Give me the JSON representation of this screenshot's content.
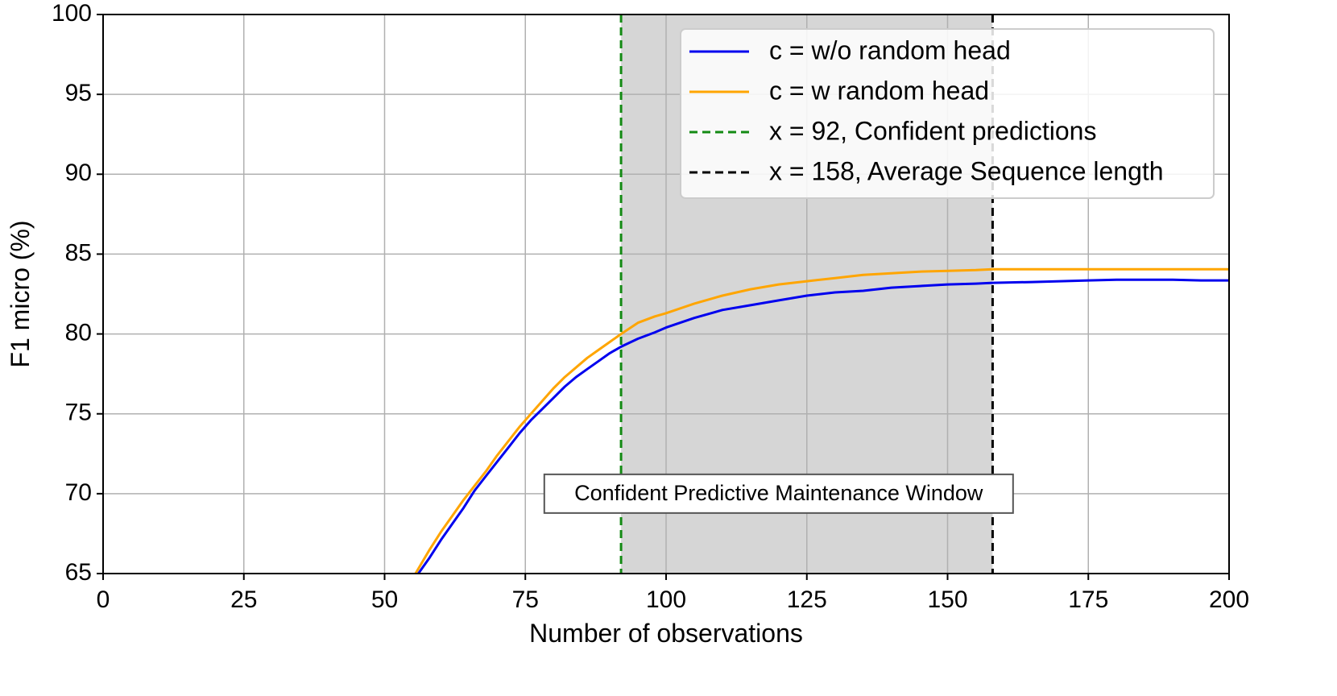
{
  "chart_data": {
    "type": "line",
    "title": "",
    "xlabel": "Number of observations",
    "ylabel": "F1 micro (%)",
    "xlim": [
      0,
      200
    ],
    "ylim": [
      65,
      100
    ],
    "xticks": [
      0,
      25,
      50,
      75,
      100,
      125,
      150,
      175,
      200
    ],
    "yticks": [
      65,
      70,
      75,
      80,
      85,
      90,
      95,
      100
    ],
    "grid": true,
    "legend_position": "top-right",
    "shaded_region": {
      "x_start": 92,
      "x_end": 158,
      "color": "#d6d6d6"
    },
    "vlines": [
      {
        "x": 92,
        "label": "x = 92, Confident predictions",
        "color": "#138a13",
        "style": "dashed"
      },
      {
        "x": 158,
        "label": "x = 158, Average Sequence length",
        "color": "#000000",
        "style": "dashed"
      }
    ],
    "annotation": {
      "text": "Confident Predictive Maintenance Window",
      "x": 120,
      "y": 70
    },
    "series": [
      {
        "name": "c = w/o random head",
        "color": "#0000ee",
        "x": [
          56,
          58,
          60,
          62,
          64,
          66,
          68,
          70,
          72,
          74,
          76,
          78,
          80,
          82,
          84,
          86,
          88,
          90,
          92,
          95,
          98,
          100,
          105,
          110,
          115,
          120,
          125,
          130,
          135,
          140,
          145,
          150,
          155,
          158,
          165,
          170,
          175,
          180,
          185,
          190,
          195,
          200
        ],
        "y": [
          65.0,
          66.0,
          67.1,
          68.1,
          69.1,
          70.2,
          71.1,
          72.0,
          72.9,
          73.8,
          74.6,
          75.3,
          76.0,
          76.7,
          77.3,
          77.8,
          78.3,
          78.8,
          79.2,
          79.7,
          80.1,
          80.4,
          81.0,
          81.5,
          81.8,
          82.1,
          82.4,
          82.6,
          82.7,
          82.9,
          83.0,
          83.1,
          83.15,
          83.2,
          83.25,
          83.3,
          83.35,
          83.4,
          83.4,
          83.4,
          83.35,
          83.35
        ]
      },
      {
        "name": "c = w random head",
        "color": "#ffa500",
        "x": [
          55.5,
          58,
          60,
          62,
          64,
          66,
          68,
          70,
          72,
          74,
          76,
          78,
          80,
          82,
          84,
          86,
          88,
          90,
          92,
          95,
          98,
          100,
          105,
          110,
          115,
          120,
          125,
          130,
          135,
          140,
          145,
          150,
          155,
          158,
          165,
          170,
          175,
          180,
          185,
          190,
          195,
          200
        ],
        "y": [
          65.0,
          66.5,
          67.6,
          68.6,
          69.6,
          70.5,
          71.4,
          72.4,
          73.3,
          74.2,
          75.0,
          75.8,
          76.6,
          77.3,
          77.9,
          78.5,
          79.0,
          79.5,
          80.0,
          80.7,
          81.1,
          81.3,
          81.9,
          82.4,
          82.8,
          83.1,
          83.3,
          83.5,
          83.7,
          83.8,
          83.9,
          83.95,
          84.0,
          84.05,
          84.05,
          84.05,
          84.05,
          84.05,
          84.05,
          84.05,
          84.05,
          84.05
        ]
      }
    ]
  }
}
